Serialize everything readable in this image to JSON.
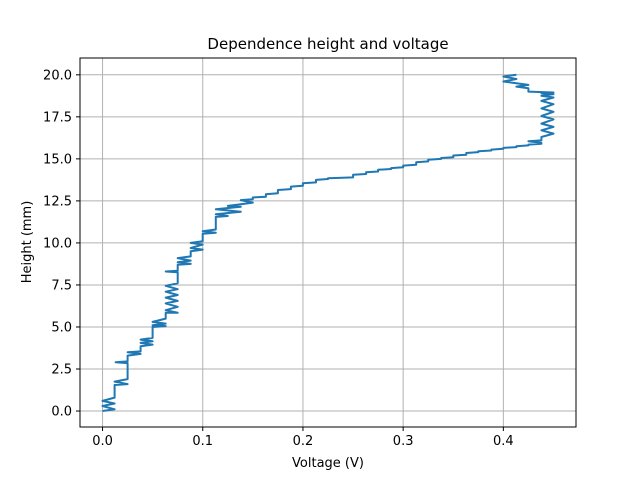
{
  "chart_data": {
    "type": "line",
    "title": "Dependence height and voltage",
    "xlabel": "Voltage (V)",
    "ylabel": "Height (mm)",
    "xlim": [
      -0.0225,
      0.4725
    ],
    "ylim": [
      -0.95,
      21.0
    ],
    "grid": true,
    "xticks": [
      0.0,
      0.1,
      0.2,
      0.3,
      0.4
    ],
    "xtick_labels": [
      "0.0",
      "0.1",
      "0.2",
      "0.3",
      "0.4"
    ],
    "yticks": [
      0.0,
      2.5,
      5.0,
      7.5,
      10.0,
      12.5,
      15.0,
      17.5,
      20.0
    ],
    "ytick_labels": [
      "0.0",
      "2.5",
      "5.0",
      "7.5",
      "10.0",
      "12.5",
      "15.0",
      "17.5",
      "20.0"
    ],
    "series": [
      {
        "color": "#1f77b4",
        "x": [
          0.0,
          0.012,
          0.0,
          0.012,
          0.0,
          0.012,
          0.012,
          0.025,
          0.012,
          0.025,
          0.025,
          0.013,
          0.025,
          0.025,
          0.038,
          0.025,
          0.038,
          0.038,
          0.05,
          0.038,
          0.05,
          0.038,
          0.05,
          0.05,
          0.063,
          0.05,
          0.063,
          0.05,
          0.063,
          0.063,
          0.075,
          0.063,
          0.075,
          0.063,
          0.075,
          0.063,
          0.075,
          0.063,
          0.075,
          0.063,
          0.075,
          0.075,
          0.063,
          0.075,
          0.075,
          0.088,
          0.075,
          0.088,
          0.075,
          0.088,
          0.088,
          0.1,
          0.088,
          0.1,
          0.088,
          0.1,
          0.1,
          0.113,
          0.1,
          0.113,
          0.113,
          0.125,
          0.113,
          0.138,
          0.113,
          0.138,
          0.125,
          0.138,
          0.15,
          0.138,
          0.15,
          0.15,
          0.163,
          0.163,
          0.175,
          0.175,
          0.188,
          0.188,
          0.2,
          0.2,
          0.213,
          0.213,
          0.225,
          0.225,
          0.25,
          0.25,
          0.263,
          0.263,
          0.275,
          0.275,
          0.288,
          0.288,
          0.3,
          0.3,
          0.313,
          0.313,
          0.325,
          0.325,
          0.338,
          0.338,
          0.35,
          0.35,
          0.363,
          0.363,
          0.375,
          0.375,
          0.388,
          0.388,
          0.4,
          0.4,
          0.413,
          0.413,
          0.425,
          0.425,
          0.438,
          0.438,
          0.425,
          0.438,
          0.438,
          0.45,
          0.438,
          0.45,
          0.438,
          0.45,
          0.438,
          0.45,
          0.438,
          0.45,
          0.438,
          0.45,
          0.438,
          0.45,
          0.438,
          0.45,
          0.425,
          0.425,
          0.413,
          0.425,
          0.413,
          0.4,
          0.413,
          0.4,
          0.413
        ],
        "y": [
          0.0,
          0.1,
          0.3,
          0.45,
          0.6,
          0.8,
          1.55,
          1.6,
          1.75,
          1.9,
          2.85,
          2.9,
          2.95,
          3.3,
          3.4,
          3.5,
          3.55,
          3.85,
          3.95,
          4.05,
          4.15,
          4.25,
          4.35,
          5.0,
          5.05,
          5.1,
          5.2,
          5.3,
          5.5,
          5.85,
          5.85,
          6.0,
          6.2,
          6.4,
          6.55,
          6.75,
          6.9,
          7.1,
          7.25,
          7.45,
          7.6,
          8.25,
          8.3,
          8.35,
          8.7,
          8.75,
          8.85,
          8.95,
          9.1,
          9.2,
          9.5,
          9.6,
          9.7,
          9.9,
          10.0,
          10.1,
          10.55,
          10.6,
          10.7,
          10.8,
          11.55,
          11.6,
          11.7,
          11.85,
          12.0,
          12.15,
          12.2,
          12.3,
          12.4,
          12.55,
          12.6,
          12.7,
          12.75,
          12.9,
          12.95,
          13.15,
          13.2,
          13.35,
          13.4,
          13.55,
          13.6,
          13.75,
          13.8,
          13.85,
          13.9,
          14.05,
          14.1,
          14.2,
          14.25,
          14.35,
          14.4,
          14.45,
          14.5,
          14.6,
          14.65,
          14.8,
          14.85,
          14.95,
          15.0,
          15.05,
          15.1,
          15.2,
          15.25,
          15.35,
          15.4,
          15.45,
          15.5,
          15.55,
          15.6,
          15.65,
          15.7,
          15.75,
          15.8,
          15.85,
          15.9,
          15.95,
          16.05,
          16.1,
          16.3,
          16.5,
          16.7,
          16.9,
          17.1,
          17.35,
          17.55,
          17.8,
          18.0,
          18.25,
          18.45,
          18.65,
          18.75,
          18.85,
          18.9,
          18.95,
          19.0,
          19.2,
          19.3,
          19.4,
          19.5,
          19.6,
          19.75,
          19.9,
          20.0
        ]
      }
    ]
  }
}
